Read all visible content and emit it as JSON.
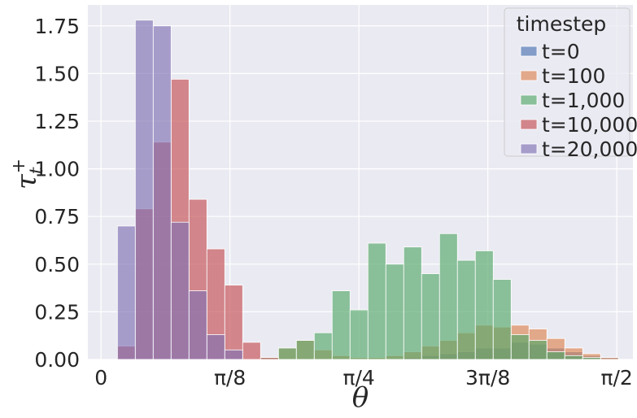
{
  "chart_data": {
    "type": "bar",
    "subtype": "overlaid-histogram",
    "xlabel": "θ",
    "ylabel_main": "τ",
    "ylabel_sub": "t",
    "ylabel_sup": "+",
    "xlim": [
      -0.04,
      1.62
    ],
    "ylim": [
      0,
      1.86
    ],
    "x_ticks": [
      {
        "value": 0,
        "label": "0"
      },
      {
        "value": 0.3927,
        "label": "π/8"
      },
      {
        "value": 0.7854,
        "label": "π/4"
      },
      {
        "value": 1.1781,
        "label": "3π/8"
      },
      {
        "value": 1.5708,
        "label": "π/2"
      }
    ],
    "y_ticks": [
      {
        "value": 0,
        "label": "0.00"
      },
      {
        "value": 0.25,
        "label": "0.25"
      },
      {
        "value": 0.5,
        "label": "0.50"
      },
      {
        "value": 0.75,
        "label": "0.75"
      },
      {
        "value": 1.0,
        "label": "1.00"
      },
      {
        "value": 1.25,
        "label": "1.25"
      },
      {
        "value": 1.5,
        "label": "1.50"
      },
      {
        "value": 1.75,
        "label": "1.75"
      }
    ],
    "grid": true,
    "bins": {
      "start": 0.05,
      "width": 0.0545,
      "count": 28
    },
    "legend": {
      "title": "timestep",
      "position": "top-right"
    },
    "series": [
      {
        "name": "t=0",
        "color": "#4c72b0",
        "values": [
          0,
          0,
          0,
          0,
          0,
          0,
          0,
          0,
          0,
          0,
          0,
          0,
          0,
          0,
          0,
          0,
          0.01,
          0.02,
          0.03,
          0.04,
          0.06,
          0.06,
          0.09,
          0.08,
          0.06,
          0.04,
          0.02,
          0.01
        ]
      },
      {
        "name": "t=100",
        "color": "#dd8452",
        "values": [
          0,
          0,
          0,
          0,
          0,
          0,
          0,
          0,
          0,
          0.06,
          0.1,
          0.05,
          0.02,
          0.01,
          0.01,
          0.02,
          0.04,
          0.07,
          0.1,
          0.14,
          0.18,
          0.17,
          0.18,
          0.16,
          0.11,
          0.06,
          0.03,
          0.01
        ]
      },
      {
        "name": "t=1,000",
        "color": "#55a868",
        "values": [
          0,
          0,
          0,
          0,
          0,
          0,
          0,
          0,
          0.01,
          0.06,
          0.1,
          0.14,
          0.36,
          0.26,
          0.61,
          0.5,
          0.59,
          0.45,
          0.66,
          0.52,
          0.57,
          0.42,
          0.13,
          0.1,
          0.04,
          0.02,
          0.01,
          0
        ]
      },
      {
        "name": "t=10,000",
        "color": "#c44e52",
        "values": [
          0.07,
          0.79,
          1.14,
          1.47,
          0.84,
          0.58,
          0.39,
          0.09,
          0.01,
          0,
          0,
          0,
          0,
          0,
          0,
          0,
          0,
          0,
          0,
          0,
          0,
          0,
          0,
          0,
          0,
          0,
          0,
          0
        ]
      },
      {
        "name": "t=20,000",
        "color": "#8172b3",
        "values": [
          0.7,
          1.78,
          1.75,
          0.72,
          0.36,
          0.13,
          0.05,
          0,
          0,
          0,
          0,
          0,
          0,
          0,
          0,
          0,
          0,
          0,
          0,
          0,
          0,
          0,
          0,
          0,
          0,
          0,
          0,
          0
        ]
      }
    ]
  }
}
